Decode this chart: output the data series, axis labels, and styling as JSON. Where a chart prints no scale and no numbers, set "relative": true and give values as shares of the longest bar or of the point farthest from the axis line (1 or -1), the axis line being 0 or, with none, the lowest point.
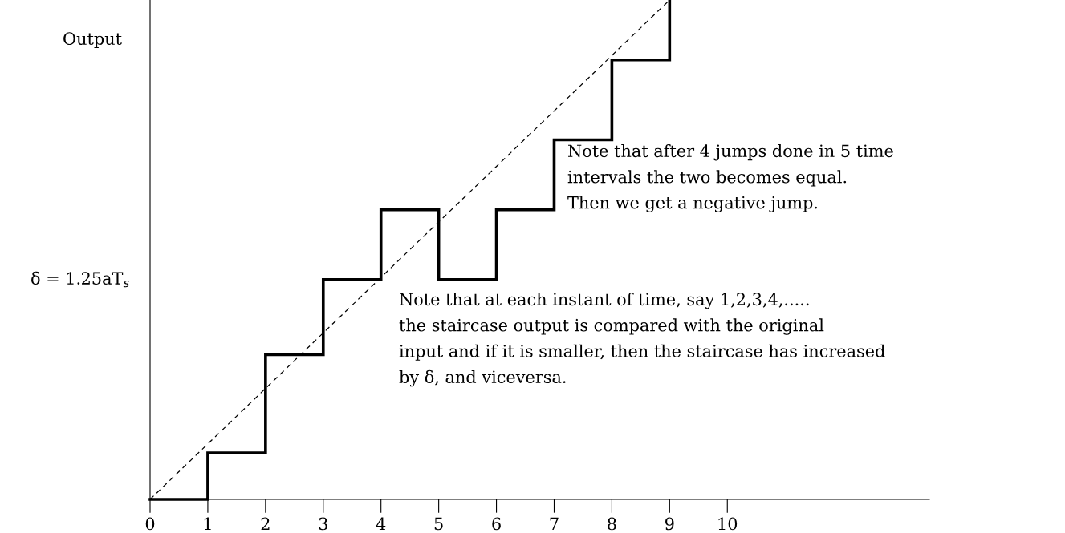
{
  "chart_data": {
    "type": "step",
    "relative": true,
    "ylabel": "Output",
    "xlim": [
      0,
      13.5
    ],
    "xticks": [
      0,
      1,
      2,
      3,
      4,
      5,
      6,
      7,
      8,
      9,
      10
    ],
    "series": [
      {
        "color": "#000000",
        "x": [
          0,
          1,
          2,
          3,
          4,
          5,
          6,
          7,
          8,
          9
        ],
        "values": [
          0,
          0.093,
          0.29,
          0.44,
          0.58,
          0.44,
          0.58,
          0.72,
          0.88,
          1.0
        ]
      },
      {
        "type": "line",
        "color": "#000000",
        "line_style": "dashed",
        "x": [
          0,
          9
        ],
        "values": [
          0,
          1
        ]
      }
    ],
    "annotations": [
      "δ = 1.25aT$_{s}$",
      "Note that after 4 jumps done in 5 time\nintervals the two becomes equal.\nThen we get a negative jump.",
      "Note that at each instant of time, say 1,2,3,4,.....\nthe staircase output is compared with the original\ninput and if it is smaller, then the staircase has increased\nby δ, and viceversa."
    ]
  }
}
